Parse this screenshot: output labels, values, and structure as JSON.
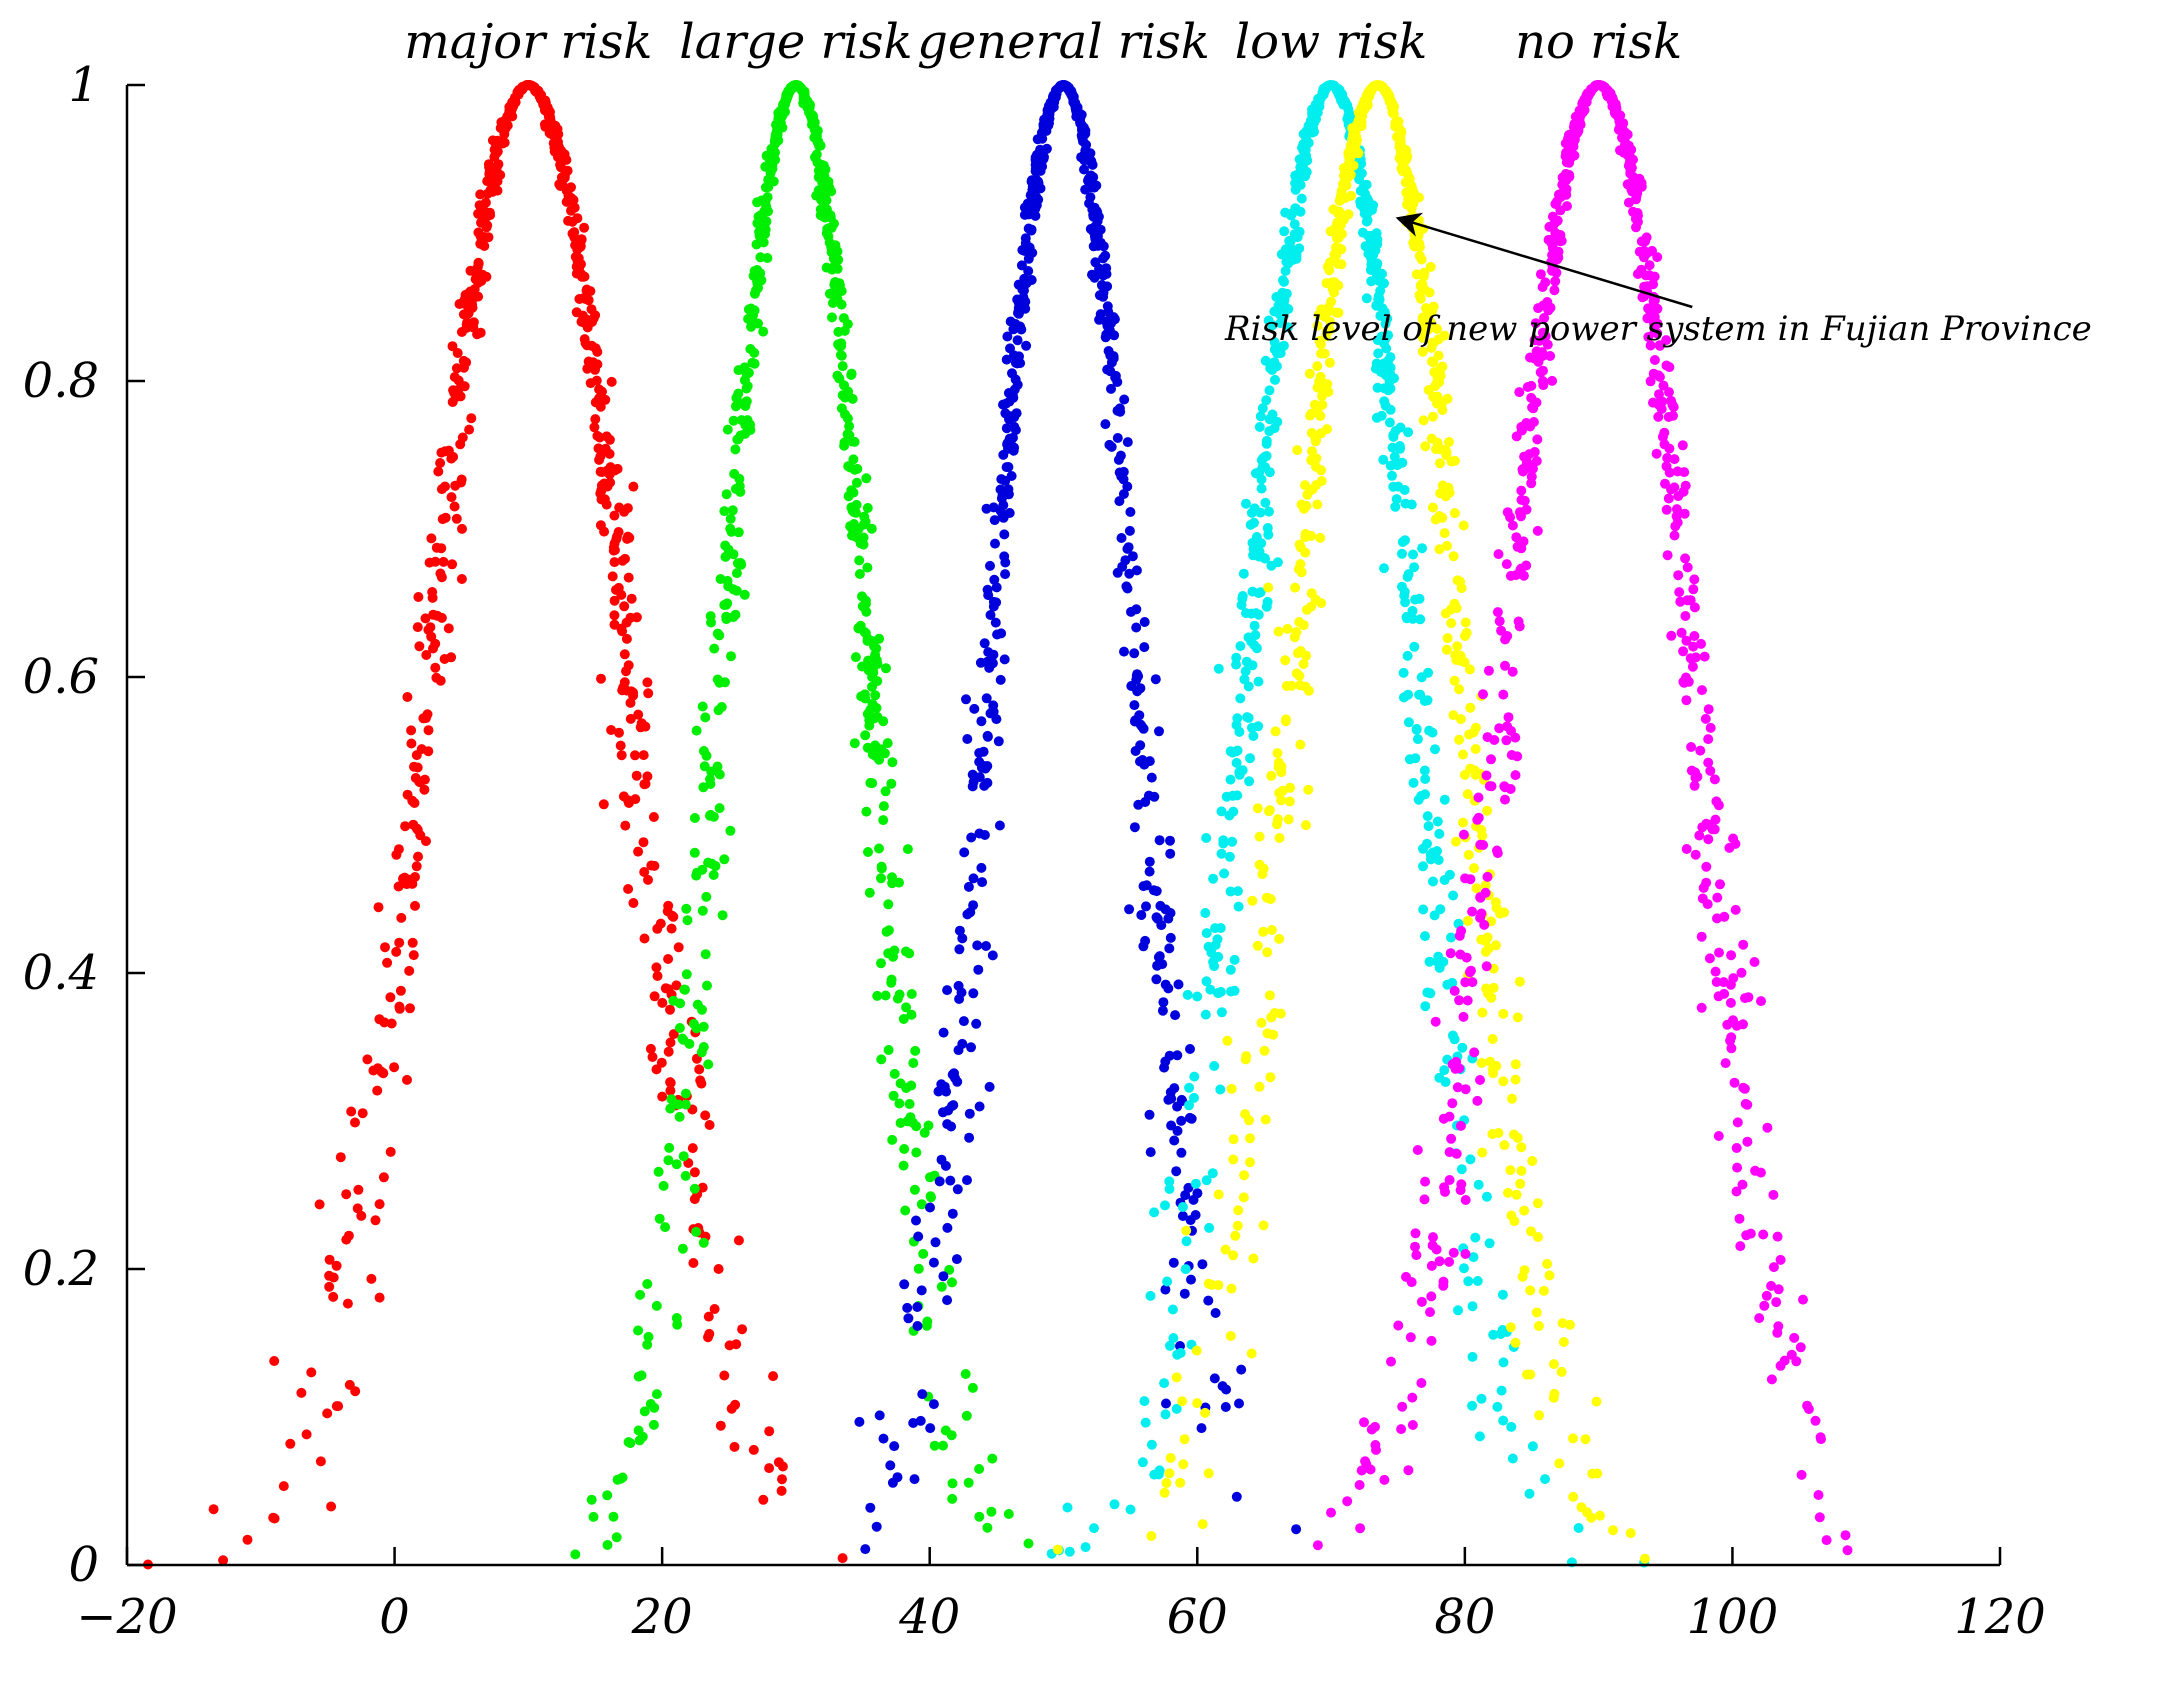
{
  "chart_data": {
    "type": "scatter",
    "title": "",
    "xlabel": "",
    "ylabel": "",
    "xlim": [
      -20,
      120
    ],
    "ylim": [
      0,
      1
    ],
    "x_ticks": [
      -20,
      0,
      20,
      40,
      60,
      80,
      100,
      120
    ],
    "x_tick_labels": [
      "−20",
      "0",
      "20",
      "40",
      "60",
      "80",
      "100",
      "120"
    ],
    "y_ticks": [
      0,
      0.2,
      0.4,
      0.6,
      0.8,
      1
    ],
    "y_tick_labels": [
      "0",
      "0.2",
      "0.4",
      "0.6",
      "0.8",
      "1"
    ],
    "grid": false,
    "legend": "none",
    "series": [
      {
        "label": "major risk",
        "color": "#ff0000",
        "center": 10,
        "spread": 7.5,
        "points": 700
      },
      {
        "label": "large risk",
        "color": "#00ee00",
        "center": 30,
        "spread": 5.5,
        "points": 700
      },
      {
        "label": "general risk",
        "color": "#0000dd",
        "center": 50,
        "spread": 5.5,
        "points": 700
      },
      {
        "label": "low risk",
        "color": "#00eeee",
        "center": 70,
        "spread": 6.3,
        "points": 700
      },
      {
        "label": "",
        "color": "#ffff00",
        "center": 73.5,
        "spread": 6.3,
        "points": 700
      },
      {
        "label": "no risk",
        "color": "#ff00ff",
        "center": 90,
        "spread": 7.0,
        "points": 700
      }
    ],
    "annotations": [
      {
        "text": "Risk level of new power system in Fujian Province",
        "arrow_target": [
          75,
          0.91
        ],
        "arrow_tail": [
          97,
          0.85
        ]
      }
    ]
  }
}
